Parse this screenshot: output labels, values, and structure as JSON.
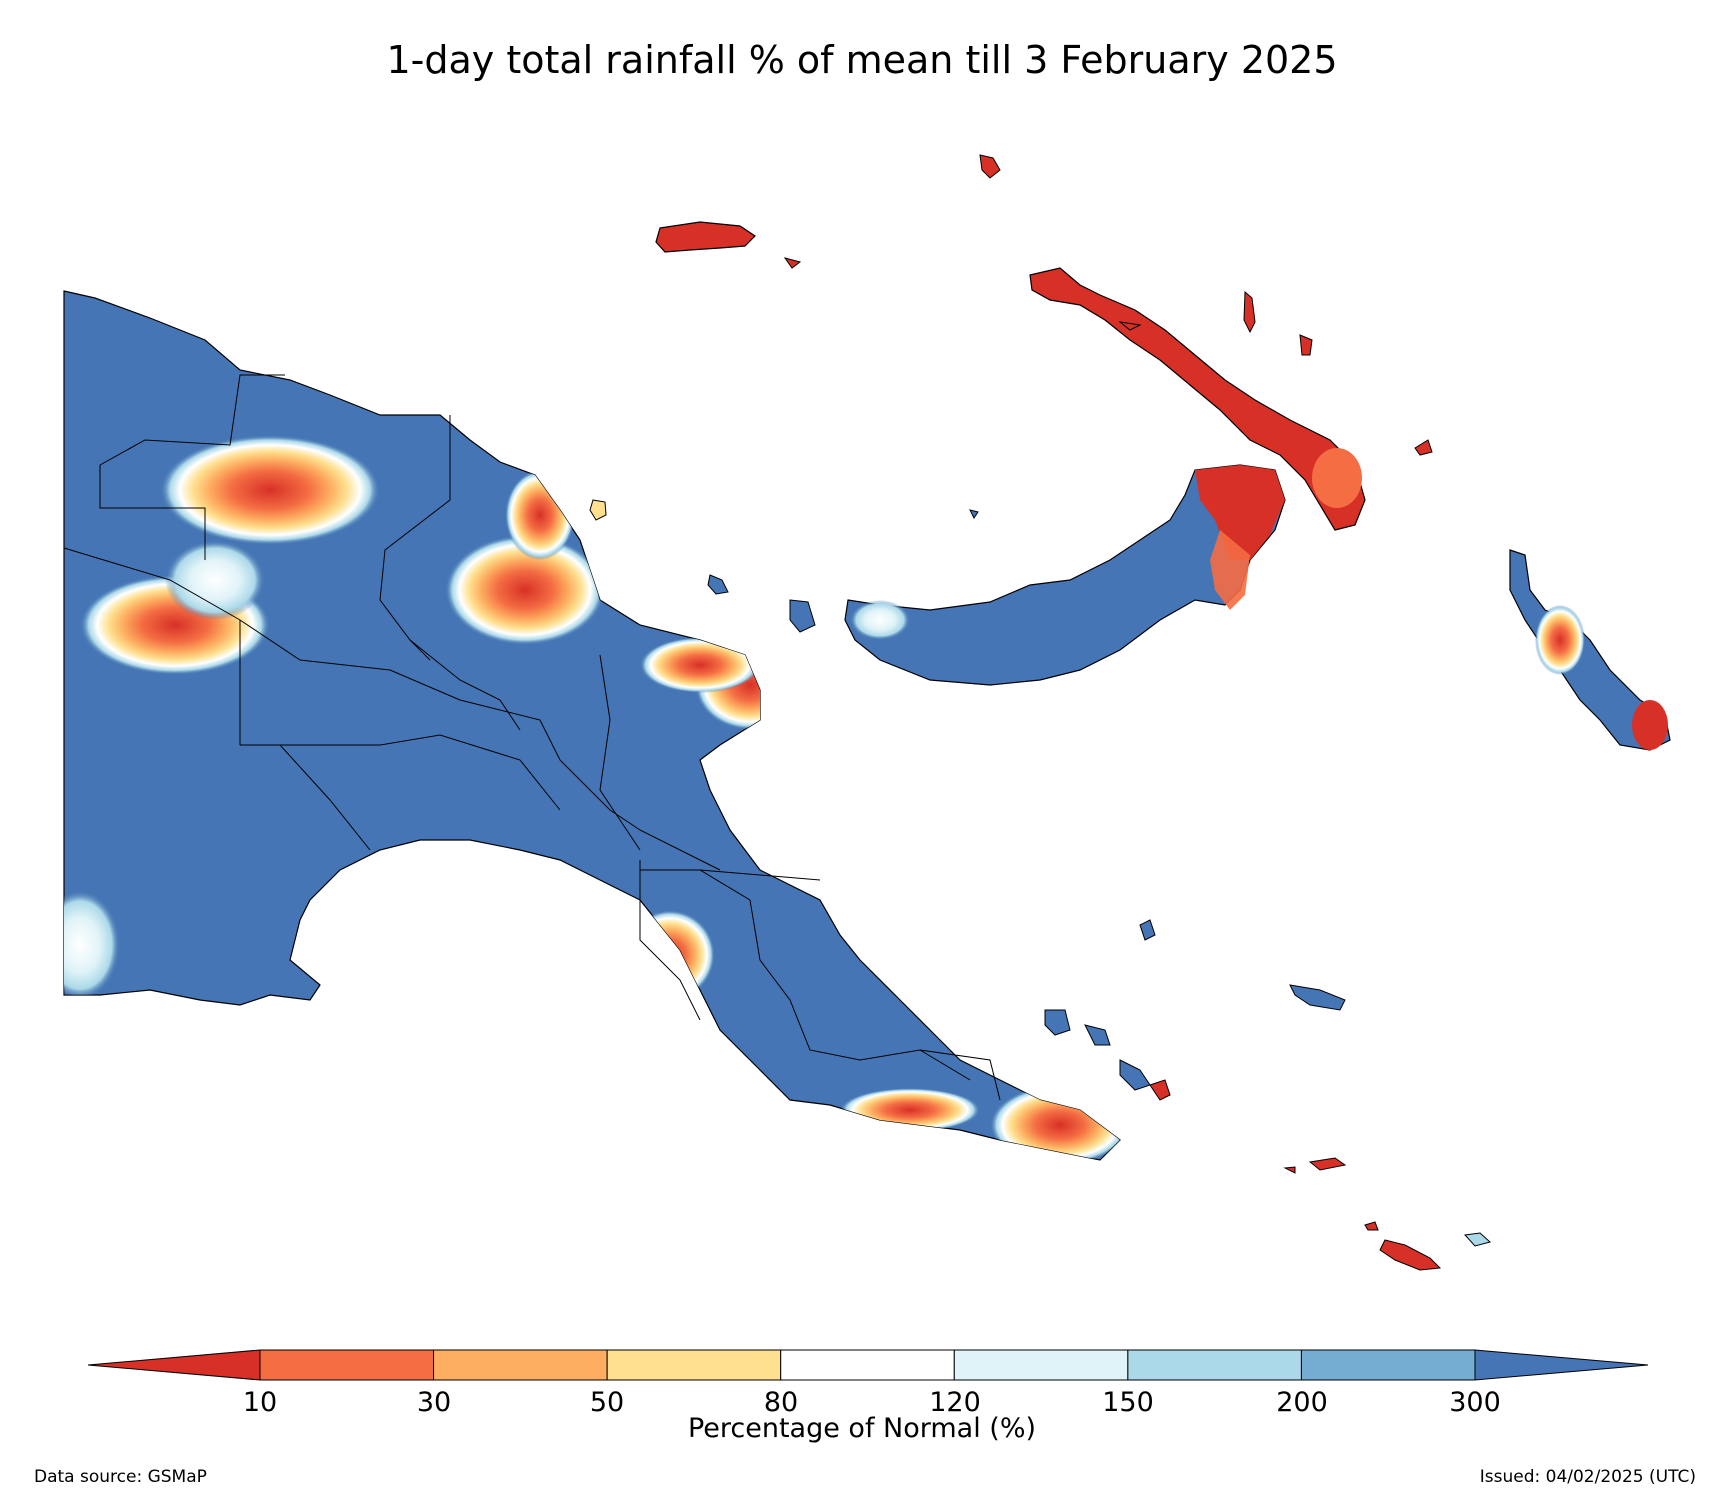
{
  "title": "1-day total rainfall % of mean till 3 February 2025",
  "map": {
    "region": "Papua New Guinea",
    "colors": {
      "land_default": "#4573b3",
      "very_dry": "#d73027",
      "dry_30": "#f46d43",
      "dry_50": "#fdae61",
      "dry_80": "#fee090",
      "normal": "#ffffff",
      "wet_150": "#e0f3f8",
      "wet_200": "#abd9e9",
      "wet_300": "#74add1",
      "very_wet": "#4575b4",
      "outline": "#000000"
    }
  },
  "colorbar": {
    "label": "Percentage of Normal (%)",
    "ticks": [
      "10",
      "30",
      "50",
      "80",
      "120",
      "150",
      "200",
      "300"
    ],
    "colors": [
      "#d73027",
      "#f46d43",
      "#fdae61",
      "#fee090",
      "#ffffff",
      "#e0f3f8",
      "#abd9e9",
      "#74add1",
      "#4575b4"
    ]
  },
  "footer": {
    "source": "Data source: GSMaP",
    "issued": "Issued: 04/02/2025 (UTC)"
  }
}
